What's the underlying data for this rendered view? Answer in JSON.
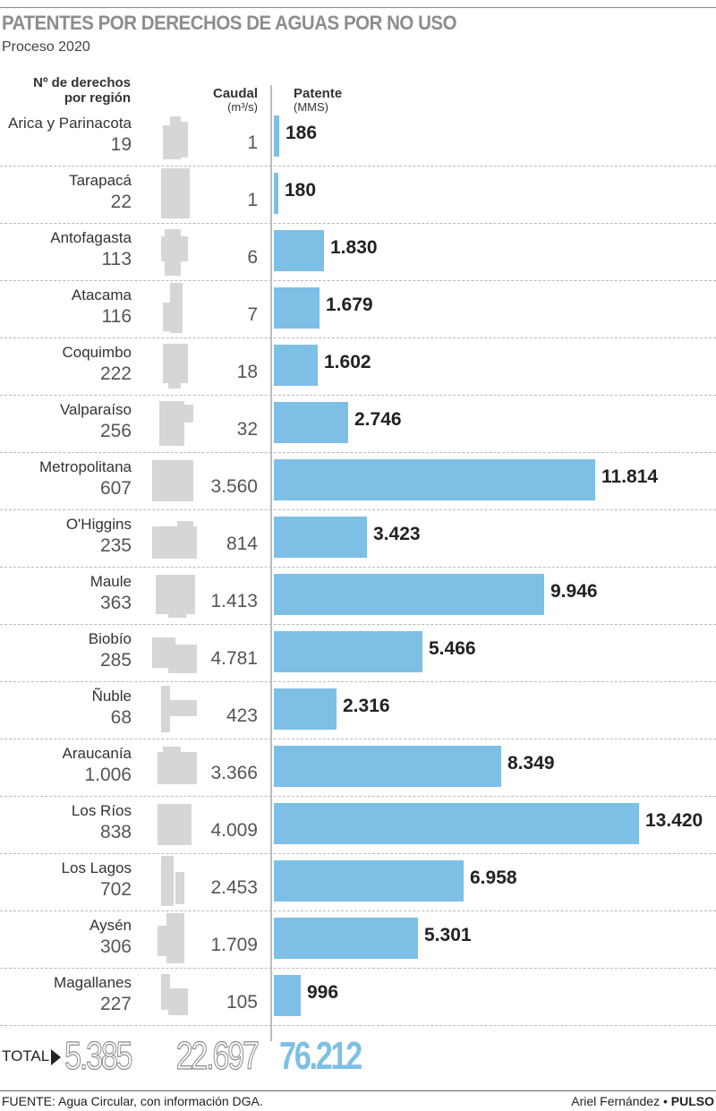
{
  "title": "PATENTES POR DERECHOS DE AGUAS POR NO USO",
  "subtitle": "Proceso 2020",
  "headers": {
    "region_line1": "Nº de derechos",
    "region_line2": "por región",
    "caudal": "Caudal",
    "caudal_unit": "(m³/s)",
    "patente": "Patente",
    "patente_unit": "(MMS)"
  },
  "colors": {
    "bar": "#7ebfe6",
    "map": "#d6d6d6",
    "title": "#8d8d8d"
  },
  "chart_data": {
    "type": "bar",
    "orientation": "horizontal",
    "categories": [
      "Arica y Parinacota",
      "Tarapacá",
      "Antofagasta",
      "Atacama",
      "Coquimbo",
      "Valparaíso",
      "Metropolitana",
      "O'Higgins",
      "Maule",
      "Biobío",
      "Ñuble",
      "Araucanía",
      "Los Ríos",
      "Los Lagos",
      "Aysén",
      "Magallanes"
    ],
    "derechos": [
      19,
      22,
      113,
      116,
      222,
      256,
      607,
      235,
      363,
      285,
      68,
      1006,
      838,
      702,
      306,
      227
    ],
    "derechos_labels": [
      "19",
      "22",
      "113",
      "116",
      "222",
      "256",
      "607",
      "235",
      "363",
      "285",
      "68",
      "1.006",
      "838",
      "702",
      "306",
      "227"
    ],
    "caudal": [
      1,
      1,
      6,
      7,
      18,
      32,
      3560,
      814,
      1413,
      4781,
      423,
      3366,
      4009,
      2453,
      1709,
      105
    ],
    "caudal_labels": [
      "1",
      "1",
      "6",
      "7",
      "18",
      "32",
      "3.560",
      "814",
      "1.413",
      "4.781",
      "423",
      "3.366",
      "4.009",
      "2.453",
      "1.709",
      "105"
    ],
    "values": [
      186,
      180,
      1830,
      1679,
      1602,
      2746,
      11814,
      3423,
      9946,
      5466,
      2316,
      8349,
      13420,
      6958,
      5301,
      996
    ],
    "value_labels": [
      "186",
      "180",
      "1.830",
      "1.679",
      "1.602",
      "2.746",
      "11.814",
      "3.423",
      "9.946",
      "5.466",
      "2.316",
      "8.349",
      "13.420",
      "6.958",
      "5.301",
      "996"
    ],
    "xlim": [
      0,
      13420
    ]
  },
  "totals": {
    "label": "TOTAL",
    "derechos": "5.385",
    "caudal": "22.697",
    "patente": "76.212"
  },
  "footer": {
    "source": "FUENTE: Agua Circular, con información DGA.",
    "author": "Ariel Fernández",
    "separator": " • ",
    "brand": "PULSO"
  }
}
